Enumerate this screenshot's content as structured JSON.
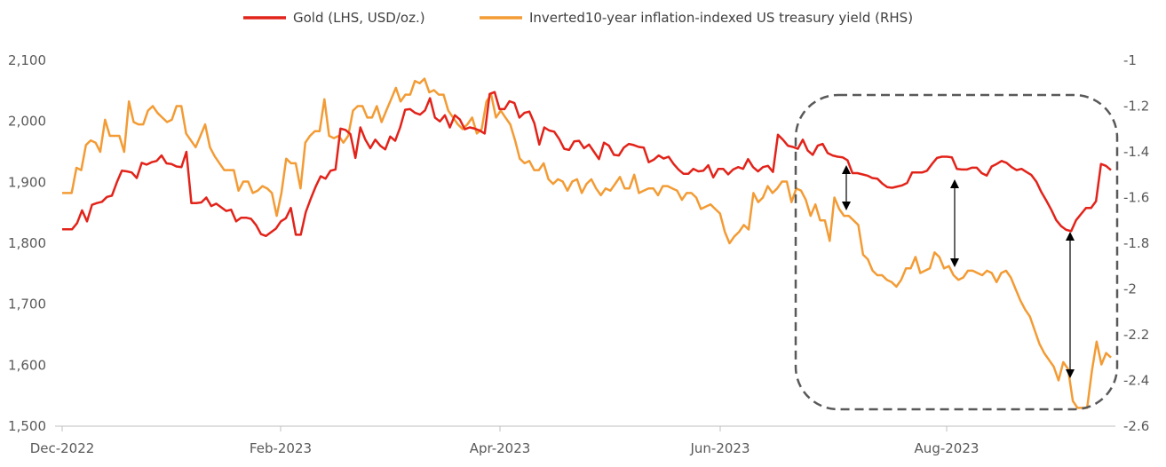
{
  "chart_data": {
    "type": "line",
    "title": "",
    "xlabel": "",
    "ylabel": "",
    "x_tick_labels": [
      "Dec-2022",
      "Feb-2023",
      "Apr-2023",
      "Jun-2023",
      "Aug-2023"
    ],
    "left_axis": {
      "ylim": [
        1500,
        2100
      ],
      "ticks": [
        1500,
        1600,
        1700,
        1800,
        1900,
        2000,
        2100
      ],
      "tick_labels": [
        "1,500",
        "1,600",
        "1,700",
        "1,800",
        "1,900",
        "2,000",
        "2,100"
      ]
    },
    "right_axis": {
      "ylim": [
        -2.6,
        -1
      ],
      "inverted_display": true,
      "ticks": [
        -1,
        -1.2,
        -1.4,
        -1.6,
        -1.8,
        -2,
        -2.2,
        -2.4,
        -2.6
      ],
      "tick_labels": [
        "-1",
        "-1.2",
        "-1.4",
        "-1.6",
        "-1.8",
        "-2",
        "-2.2",
        "-2.4",
        "-2.6"
      ]
    },
    "legend_position": "top-center",
    "grid": false,
    "series": [
      {
        "name": "Gold (LHS, USD/oz.)",
        "axis": "left",
        "color": "#e2231a",
        "values": [
          1823,
          1823,
          1823,
          1833,
          1854,
          1836,
          1863,
          1866,
          1868,
          1876,
          1878,
          1900,
          1919,
          1918,
          1916,
          1907,
          1932,
          1929,
          1933,
          1935,
          1944,
          1931,
          1930,
          1926,
          1925,
          1950,
          1866,
          1866,
          1867,
          1875,
          1861,
          1865,
          1859,
          1853,
          1855,
          1836,
          1842,
          1842,
          1840,
          1830,
          1815,
          1812,
          1818,
          1824,
          1836,
          1841,
          1858,
          1814,
          1814,
          1851,
          1873,
          1893,
          1910,
          1906,
          1919,
          1921,
          1988,
          1986,
          1979,
          1940,
          1990,
          1970,
          1956,
          1970,
          1960,
          1954,
          1975,
          1968,
          1990,
          2019,
          2020,
          2014,
          2011,
          2018,
          2038,
          2006,
          2000,
          2010,
          1990,
          2010,
          2003,
          1987,
          1990,
          1988,
          1985,
          1980,
          2045,
          2048,
          2020,
          2020,
          2033,
          2030,
          2006,
          2014,
          2016,
          1997,
          1962,
          1990,
          1985,
          1983,
          1971,
          1955,
          1953,
          1967,
          1968,
          1956,
          1962,
          1950,
          1938,
          1965,
          1960,
          1945,
          1944,
          1957,
          1963,
          1961,
          1958,
          1957,
          1933,
          1937,
          1944,
          1939,
          1942,
          1930,
          1921,
          1914,
          1914,
          1922,
          1918,
          1919,
          1928,
          1908,
          1922,
          1922,
          1913,
          1921,
          1925,
          1922,
          1938,
          1925,
          1918,
          1925,
          1927,
          1917,
          1978,
          1970,
          1960,
          1958,
          1955,
          1970,
          1952,
          1945,
          1960,
          1963,
          1948,
          1944,
          1942,
          1941,
          1936,
          1915,
          1915,
          1913,
          1911,
          1907,
          1906,
          1898,
          1892,
          1891,
          1893,
          1895,
          1899,
          1916,
          1916,
          1916,
          1919,
          1930,
          1940,
          1942,
          1942,
          1941,
          1922,
          1921,
          1921,
          1924,
          1924,
          1915,
          1911,
          1926,
          1930,
          1935,
          1932,
          1925,
          1920,
          1922,
          1917,
          1912,
          1901,
          1884,
          1870,
          1855,
          1838,
          1828,
          1822,
          1820,
          1838,
          1848,
          1858,
          1858,
          1869,
          1930,
          1927,
          1920
        ]
      },
      {
        "name": "Inverted10-year inflation-indexed US treasury yield (RHS)",
        "axis": "right",
        "color": "#f39b34",
        "values": [
          -1.58,
          -1.58,
          -1.58,
          -1.47,
          -1.48,
          -1.37,
          -1.35,
          -1.36,
          -1.4,
          -1.26,
          -1.33,
          -1.33,
          -1.33,
          -1.4,
          -1.18,
          -1.27,
          -1.28,
          -1.28,
          -1.22,
          -1.2,
          -1.23,
          -1.25,
          -1.27,
          -1.26,
          -1.2,
          -1.2,
          -1.32,
          -1.35,
          -1.38,
          -1.33,
          -1.28,
          -1.38,
          -1.42,
          -1.45,
          -1.48,
          -1.48,
          -1.48,
          -1.57,
          -1.53,
          -1.53,
          -1.58,
          -1.57,
          -1.55,
          -1.56,
          -1.58,
          -1.68,
          -1.58,
          -1.43,
          -1.45,
          -1.45,
          -1.56,
          -1.36,
          -1.33,
          -1.31,
          -1.31,
          -1.17,
          -1.33,
          -1.34,
          -1.33,
          -1.36,
          -1.33,
          -1.22,
          -1.2,
          -1.2,
          -1.25,
          -1.25,
          -1.2,
          -1.27,
          -1.22,
          -1.17,
          -1.12,
          -1.18,
          -1.15,
          -1.15,
          -1.09,
          -1.1,
          -1.08,
          -1.14,
          -1.13,
          -1.15,
          -1.15,
          -1.22,
          -1.25,
          -1.28,
          -1.3,
          -1.28,
          -1.25,
          -1.32,
          -1.3,
          -1.18,
          -1.15,
          -1.25,
          -1.22,
          -1.25,
          -1.28,
          -1.35,
          -1.43,
          -1.45,
          -1.44,
          -1.48,
          -1.48,
          -1.45,
          -1.52,
          -1.54,
          -1.52,
          -1.53,
          -1.57,
          -1.53,
          -1.52,
          -1.58,
          -1.54,
          -1.52,
          -1.56,
          -1.59,
          -1.56,
          -1.57,
          -1.54,
          -1.51,
          -1.56,
          -1.56,
          -1.5,
          -1.58,
          -1.57,
          -1.56,
          -1.56,
          -1.59,
          -1.55,
          -1.55,
          -1.56,
          -1.57,
          -1.61,
          -1.58,
          -1.58,
          -1.6,
          -1.65,
          -1.64,
          -1.63,
          -1.65,
          -1.67,
          -1.75,
          -1.8,
          -1.77,
          -1.75,
          -1.72,
          -1.74,
          -1.58,
          -1.62,
          -1.6,
          -1.55,
          -1.58,
          -1.56,
          -1.53,
          -1.53,
          -1.62,
          -1.56,
          -1.57,
          -1.61,
          -1.68,
          -1.63,
          -1.7,
          -1.7,
          -1.79,
          -1.6,
          -1.65,
          -1.68,
          -1.68,
          -1.7,
          -1.72,
          -1.85,
          -1.87,
          -1.92,
          -1.94,
          -1.94,
          -1.96,
          -1.97,
          -1.99,
          -1.96,
          -1.91,
          -1.91,
          -1.86,
          -1.93,
          -1.92,
          -1.91,
          -1.84,
          -1.86,
          -1.91,
          -1.9,
          -1.94,
          -1.96,
          -1.95,
          -1.92,
          -1.92,
          -1.93,
          -1.94,
          -1.92,
          -1.93,
          -1.97,
          -1.93,
          -1.92,
          -1.95,
          -2.0,
          -2.05,
          -2.09,
          -2.12,
          -2.18,
          -2.24,
          -2.28,
          -2.31,
          -2.34,
          -2.4,
          -2.32,
          -2.35,
          -2.49,
          -2.52,
          -2.52,
          -2.52,
          -2.36,
          -2.23,
          -2.33,
          -2.28,
          -2.3
        ]
      }
    ],
    "annotations": {
      "shape": "dashed-rounded-rectangle",
      "arrows": [
        "double-headed",
        "double-headed",
        "double-headed"
      ]
    },
    "colors": {
      "axis": "#bfbfbf",
      "tick_text": "#595959",
      "annotation": "#595959"
    }
  }
}
